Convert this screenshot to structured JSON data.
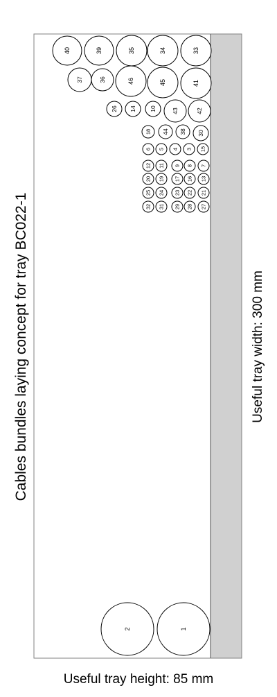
{
  "title": "Cables bundles laying concept for tray BC022-1",
  "width_label": "Useful tray width: 300 mm",
  "height_label": "Useful tray height: 85 mm",
  "cables": [
    {
      "id": "40"
    },
    {
      "id": "39"
    },
    {
      "id": "35"
    },
    {
      "id": "34"
    },
    {
      "id": "33"
    },
    {
      "id": "37"
    },
    {
      "id": "36"
    },
    {
      "id": "46"
    },
    {
      "id": "45"
    },
    {
      "id": "41"
    },
    {
      "id": "26"
    },
    {
      "id": "14"
    },
    {
      "id": "10"
    },
    {
      "id": "43"
    },
    {
      "id": "42"
    },
    {
      "id": "18"
    },
    {
      "id": "44"
    },
    {
      "id": "38"
    },
    {
      "id": "30"
    },
    {
      "id": "6"
    },
    {
      "id": "5"
    },
    {
      "id": "4"
    },
    {
      "id": "3"
    },
    {
      "id": "15"
    },
    {
      "id": "12"
    },
    {
      "id": "11"
    },
    {
      "id": "9"
    },
    {
      "id": "8"
    },
    {
      "id": "7"
    },
    {
      "id": "20"
    },
    {
      "id": "19"
    },
    {
      "id": "17"
    },
    {
      "id": "16"
    },
    {
      "id": "13"
    },
    {
      "id": "25"
    },
    {
      "id": "24"
    },
    {
      "id": "23"
    },
    {
      "id": "22"
    },
    {
      "id": "21"
    },
    {
      "id": "32"
    },
    {
      "id": "31"
    },
    {
      "id": "29"
    },
    {
      "id": "28"
    },
    {
      "id": "27"
    },
    {
      "id": "2"
    },
    {
      "id": "1"
    }
  ]
}
